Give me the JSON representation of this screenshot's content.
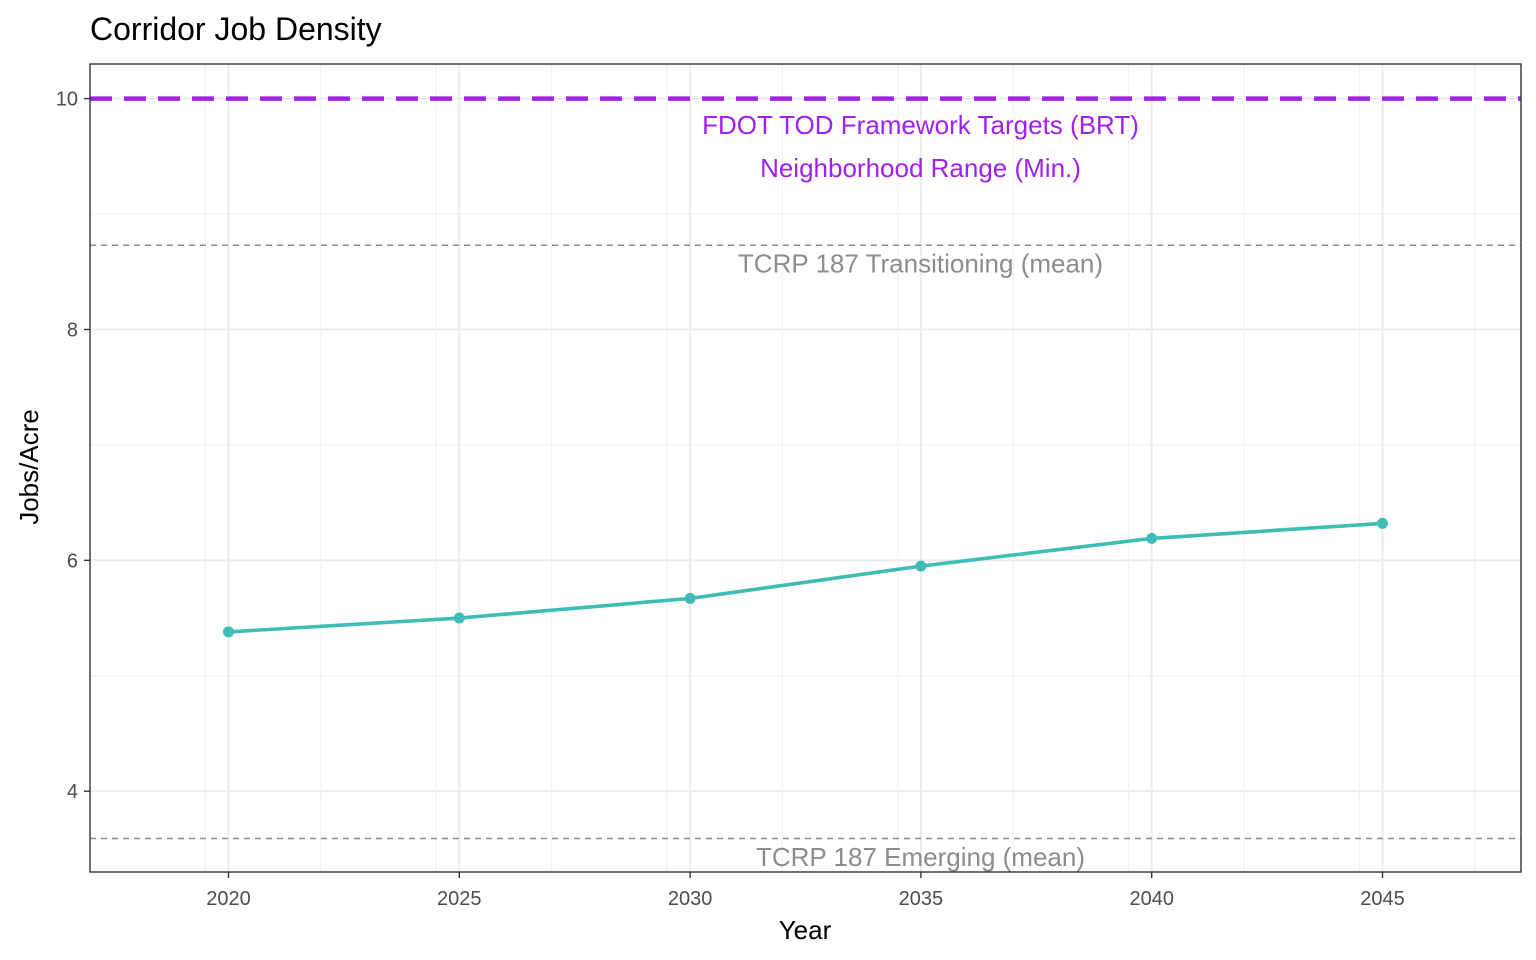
{
  "chart_data": {
    "type": "line",
    "title": "Corridor Job Density",
    "xlabel": "Year",
    "ylabel": "Jobs/Acre",
    "xlim": [
      2017,
      2048
    ],
    "ylim": [
      3.3,
      10.3
    ],
    "x_ticks": [
      2020,
      2025,
      2030,
      2035,
      2040,
      2045
    ],
    "y_ticks": [
      4,
      6,
      8,
      10
    ],
    "y_minor_ticks": [
      5,
      7,
      9
    ],
    "grid": true,
    "legend": "none",
    "series": [
      {
        "x": [
          2020,
          2025,
          2030,
          2035,
          2040,
          2045
        ],
        "values": [
          5.38,
          5.5,
          5.67,
          5.95,
          6.19,
          6.32
        ],
        "color": "#3dbdb5"
      }
    ],
    "reference_lines": [
      {
        "y": 10.0,
        "color": "#a020f0",
        "style": "dashed",
        "weight": "thick",
        "labels": [
          "FDOT TOD Framework Targets (BRT)",
          "Neighborhood Range (Min.)"
        ],
        "label_y": [
          9.77,
          9.4
        ]
      },
      {
        "y": 8.73,
        "color": "#8c8c8c",
        "style": "dashed",
        "weight": "thin",
        "labels": [
          "TCRP 187 Transitioning (mean)"
        ],
        "label_y": [
          8.57
        ]
      },
      {
        "y": 3.59,
        "color": "#8c8c8c",
        "style": "dashed",
        "weight": "thin",
        "labels": [
          "TCRP 187 Emerging (mean)"
        ],
        "label_y": [
          3.43
        ]
      }
    ]
  }
}
